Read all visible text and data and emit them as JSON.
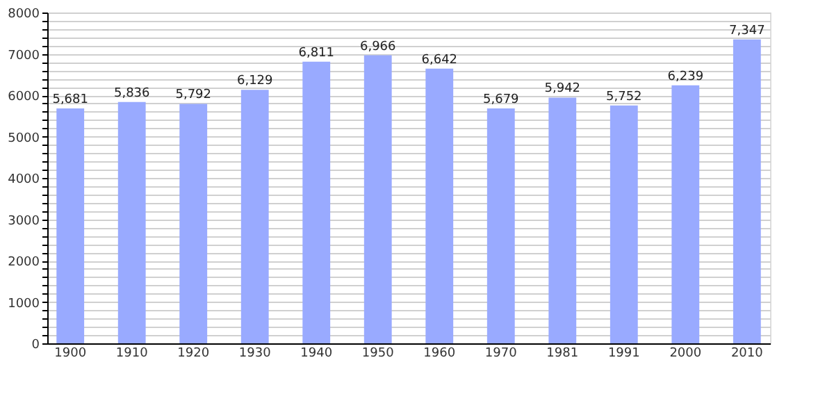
{
  "chart_data": {
    "type": "bar",
    "categories": [
      "1900",
      "1910",
      "1920",
      "1930",
      "1940",
      "1950",
      "1960",
      "1970",
      "1981",
      "1991",
      "2000",
      "2010"
    ],
    "values": [
      5681,
      5836,
      5792,
      6129,
      6811,
      6966,
      6642,
      5679,
      5942,
      5752,
      6239,
      7347
    ],
    "color": "#99aaff",
    "ylim": [
      0,
      8000
    ],
    "yticks": [
      0,
      {
        "value": 200,
        "label": null
      },
      {
        "value": 400,
        "label": null
      },
      {
        "value": 600,
        "label": null
      },
      {
        "value": 800,
        "label": null
      },
      1000,
      {
        "value": 1200,
        "label": null
      },
      {
        "value": 1400,
        "label": null
      },
      {
        "value": 1600,
        "label": null
      },
      {
        "value": 1800,
        "label": null
      },
      2000,
      {
        "value": 2200,
        "label": null
      },
      {
        "value": 2400,
        "label": null
      },
      {
        "value": 2600,
        "label": null
      },
      {
        "value": 2800,
        "label": null
      },
      3000,
      {
        "value": 3200,
        "label": null
      },
      {
        "value": 3400,
        "label": null
      },
      {
        "value": 3600,
        "label": null
      },
      {
        "value": 3800,
        "label": null
      },
      4000,
      {
        "value": 4200,
        "label": null
      },
      {
        "value": 4400,
        "label": null
      },
      {
        "value": 4600,
        "label": null
      },
      {
        "value": 4800,
        "label": null
      },
      5000,
      {
        "value": 5200,
        "label": null
      },
      {
        "value": 5400,
        "label": null
      },
      {
        "value": 5600,
        "label": null
      },
      {
        "value": 5800,
        "label": null
      },
      6000,
      {
        "value": 6200,
        "label": null
      },
      {
        "value": 6400,
        "label": null
      },
      {
        "value": 6600,
        "label": null
      },
      {
        "value": 6800,
        "label": null
      },
      7000,
      {
        "value": 7200,
        "label": null
      },
      {
        "value": 7400,
        "label": null
      },
      {
        "value": 7600,
        "label": null
      },
      {
        "value": 7800,
        "label": null
      },
      8000
    ],
    "grid": "y",
    "value_labels": [
      "5,681",
      "5,836",
      "5,792",
      "6,129",
      "6,811",
      "6,966",
      "6,642",
      "5,679",
      "5,942",
      "5,752",
      "6,239",
      "7,347"
    ]
  }
}
